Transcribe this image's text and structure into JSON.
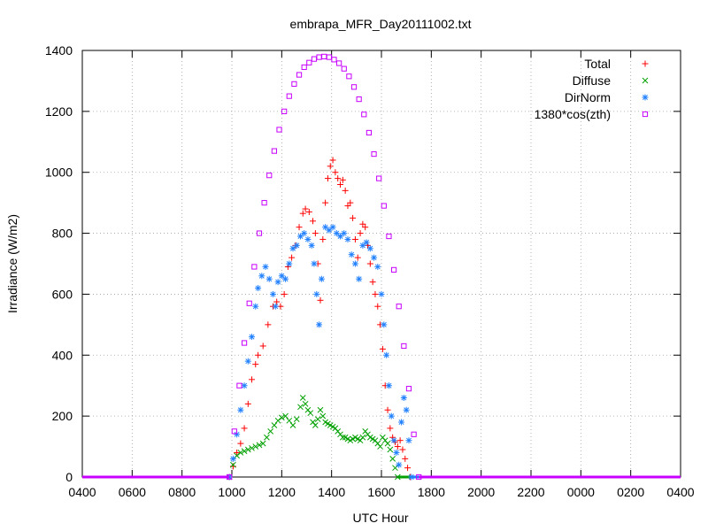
{
  "chart_data": {
    "type": "scatter",
    "title": "embrapa_MFR_Day20111002.txt",
    "xlabel": "UTC Hour",
    "ylabel": "Irradiance (W/m2)",
    "x_ticks": [
      "0400",
      "0600",
      "0800",
      "1000",
      "1200",
      "1400",
      "1600",
      "1800",
      "2000",
      "2200",
      "0000",
      "0200",
      "0400"
    ],
    "x_range_hours": [
      4,
      28
    ],
    "y_ticks": [
      "0",
      "200",
      "400",
      "600",
      "800",
      "1000",
      "1200",
      "1400"
    ],
    "ylim": [
      0,
      1400
    ],
    "grid": true,
    "legend_position": "top-right",
    "series": [
      {
        "name": "Total",
        "marker": "plus",
        "color": "#ff0000",
        "points": [
          [
            9.9,
            0
          ],
          [
            10.05,
            35
          ],
          [
            10.2,
            80
          ],
          [
            10.35,
            110
          ],
          [
            10.5,
            160
          ],
          [
            10.65,
            240
          ],
          [
            10.8,
            320
          ],
          [
            10.95,
            370
          ],
          [
            11.05,
            400
          ],
          [
            11.25,
            430
          ],
          [
            11.45,
            500
          ],
          [
            11.65,
            560
          ],
          [
            11.8,
            575
          ],
          [
            11.95,
            560
          ],
          [
            12.1,
            600
          ],
          [
            12.25,
            690
          ],
          [
            12.4,
            720
          ],
          [
            12.55,
            760
          ],
          [
            12.7,
            820
          ],
          [
            12.85,
            865
          ],
          [
            12.95,
            880
          ],
          [
            13.1,
            870
          ],
          [
            13.25,
            840
          ],
          [
            13.35,
            800
          ],
          [
            13.45,
            700
          ],
          [
            13.55,
            580
          ],
          [
            13.65,
            780
          ],
          [
            13.75,
            900
          ],
          [
            13.85,
            980
          ],
          [
            13.95,
            1020
          ],
          [
            14.05,
            1040
          ],
          [
            14.15,
            1000
          ],
          [
            14.25,
            980
          ],
          [
            14.35,
            960
          ],
          [
            14.45,
            975
          ],
          [
            14.55,
            940
          ],
          [
            14.65,
            890
          ],
          [
            14.75,
            900
          ],
          [
            14.85,
            850
          ],
          [
            14.95,
            780
          ],
          [
            15.05,
            720
          ],
          [
            15.15,
            800
          ],
          [
            15.25,
            830
          ],
          [
            15.35,
            820
          ],
          [
            15.45,
            760
          ],
          [
            15.55,
            700
          ],
          [
            15.65,
            640
          ],
          [
            15.75,
            600
          ],
          [
            15.85,
            560
          ],
          [
            15.95,
            500
          ],
          [
            16.05,
            420
          ],
          [
            16.15,
            300
          ],
          [
            16.25,
            220
          ],
          [
            16.35,
            160
          ],
          [
            16.45,
            130
          ],
          [
            16.55,
            115
          ],
          [
            16.65,
            100
          ],
          [
            16.75,
            120
          ],
          [
            16.85,
            90
          ],
          [
            16.95,
            60
          ],
          [
            17.05,
            30
          ],
          [
            17.15,
            0
          ]
        ]
      },
      {
        "name": "Diffuse",
        "marker": "cross",
        "color": "#00a000",
        "points": [
          [
            9.9,
            0
          ],
          [
            10.05,
            40
          ],
          [
            10.2,
            70
          ],
          [
            10.35,
            80
          ],
          [
            10.5,
            85
          ],
          [
            10.65,
            90
          ],
          [
            10.8,
            95
          ],
          [
            10.95,
            100
          ],
          [
            11.1,
            105
          ],
          [
            11.25,
            110
          ],
          [
            11.4,
            130
          ],
          [
            11.55,
            150
          ],
          [
            11.7,
            170
          ],
          [
            11.85,
            185
          ],
          [
            12.0,
            195
          ],
          [
            12.15,
            200
          ],
          [
            12.3,
            185
          ],
          [
            12.45,
            170
          ],
          [
            12.6,
            190
          ],
          [
            12.75,
            230
          ],
          [
            12.85,
            260
          ],
          [
            12.95,
            240
          ],
          [
            13.05,
            220
          ],
          [
            13.15,
            210
          ],
          [
            13.25,
            180
          ],
          [
            13.35,
            170
          ],
          [
            13.45,
            190
          ],
          [
            13.55,
            220
          ],
          [
            13.65,
            200
          ],
          [
            13.75,
            180
          ],
          [
            13.85,
            175
          ],
          [
            13.95,
            170
          ],
          [
            14.05,
            165
          ],
          [
            14.15,
            160
          ],
          [
            14.25,
            150
          ],
          [
            14.35,
            140
          ],
          [
            14.45,
            130
          ],
          [
            14.55,
            130
          ],
          [
            14.65,
            125
          ],
          [
            14.75,
            120
          ],
          [
            14.85,
            125
          ],
          [
            14.95,
            130
          ],
          [
            15.05,
            125
          ],
          [
            15.15,
            120
          ],
          [
            15.25,
            130
          ],
          [
            15.35,
            150
          ],
          [
            15.45,
            140
          ],
          [
            15.55,
            130
          ],
          [
            15.65,
            125
          ],
          [
            15.75,
            120
          ],
          [
            15.85,
            110
          ],
          [
            15.95,
            100
          ],
          [
            16.05,
            130
          ],
          [
            16.15,
            120
          ],
          [
            16.25,
            110
          ],
          [
            16.35,
            90
          ],
          [
            16.45,
            60
          ],
          [
            16.55,
            30
          ],
          [
            16.65,
            0
          ]
        ]
      },
      {
        "name": "DirNorm",
        "marker": "star",
        "color": "#2080ff",
        "points": [
          [
            9.9,
            0
          ],
          [
            10.05,
            60
          ],
          [
            10.2,
            140
          ],
          [
            10.35,
            220
          ],
          [
            10.5,
            300
          ],
          [
            10.65,
            380
          ],
          [
            10.8,
            460
          ],
          [
            10.95,
            560
          ],
          [
            11.05,
            620
          ],
          [
            11.2,
            660
          ],
          [
            11.35,
            690
          ],
          [
            11.5,
            650
          ],
          [
            11.65,
            600
          ],
          [
            11.75,
            560
          ],
          [
            11.85,
            640
          ],
          [
            12.0,
            660
          ],
          [
            12.15,
            650
          ],
          [
            12.3,
            700
          ],
          [
            12.45,
            750
          ],
          [
            12.6,
            760
          ],
          [
            12.75,
            790
          ],
          [
            12.9,
            800
          ],
          [
            13.05,
            780
          ],
          [
            13.2,
            760
          ],
          [
            13.3,
            700
          ],
          [
            13.4,
            600
          ],
          [
            13.5,
            500
          ],
          [
            13.6,
            650
          ],
          [
            13.75,
            820
          ],
          [
            13.9,
            810
          ],
          [
            14.05,
            820
          ],
          [
            14.2,
            800
          ],
          [
            14.35,
            790
          ],
          [
            14.5,
            800
          ],
          [
            14.65,
            780
          ],
          [
            14.8,
            730
          ],
          [
            14.95,
            700
          ],
          [
            15.1,
            650
          ],
          [
            15.25,
            760
          ],
          [
            15.4,
            770
          ],
          [
            15.55,
            750
          ],
          [
            15.7,
            720
          ],
          [
            15.85,
            690
          ],
          [
            16.0,
            600
          ],
          [
            16.1,
            500
          ],
          [
            16.2,
            400
          ],
          [
            16.3,
            300
          ],
          [
            16.4,
            200
          ],
          [
            16.5,
            120
          ],
          [
            16.6,
            80
          ],
          [
            16.7,
            40
          ],
          [
            16.8,
            180
          ],
          [
            16.9,
            260
          ],
          [
            17.0,
            220
          ],
          [
            17.1,
            120
          ],
          [
            17.2,
            0
          ]
        ]
      },
      {
        "name": "1380*cos(zth)",
        "marker": "square",
        "color": "#c800ff",
        "points": [
          [
            9.9,
            0
          ],
          [
            10.1,
            150
          ],
          [
            10.3,
            300
          ],
          [
            10.5,
            440
          ],
          [
            10.7,
            570
          ],
          [
            10.9,
            690
          ],
          [
            11.1,
            800
          ],
          [
            11.3,
            900
          ],
          [
            11.5,
            990
          ],
          [
            11.7,
            1070
          ],
          [
            11.9,
            1140
          ],
          [
            12.1,
            1200
          ],
          [
            12.3,
            1250
          ],
          [
            12.5,
            1290
          ],
          [
            12.7,
            1320
          ],
          [
            12.9,
            1345
          ],
          [
            13.1,
            1360
          ],
          [
            13.3,
            1372
          ],
          [
            13.5,
            1378
          ],
          [
            13.7,
            1380
          ],
          [
            13.9,
            1378
          ],
          [
            14.1,
            1370
          ],
          [
            14.3,
            1358
          ],
          [
            14.5,
            1340
          ],
          [
            14.7,
            1315
          ],
          [
            14.9,
            1280
          ],
          [
            15.1,
            1240
          ],
          [
            15.3,
            1190
          ],
          [
            15.5,
            1130
          ],
          [
            15.7,
            1060
          ],
          [
            15.9,
            980
          ],
          [
            16.1,
            890
          ],
          [
            16.3,
            790
          ],
          [
            16.5,
            680
          ],
          [
            16.7,
            560
          ],
          [
            16.9,
            430
          ],
          [
            17.1,
            290
          ],
          [
            17.3,
            140
          ],
          [
            17.5,
            0
          ]
        ]
      }
    ]
  }
}
